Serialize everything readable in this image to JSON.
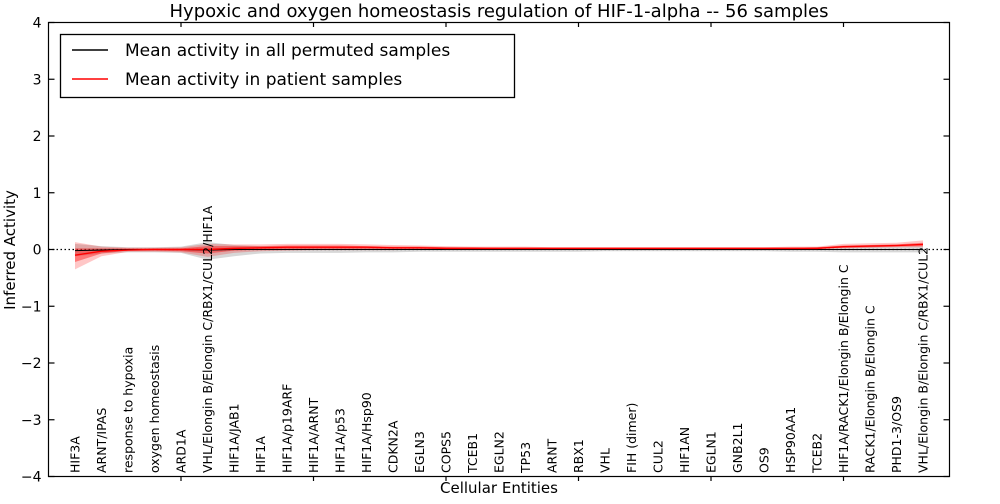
{
  "chart_data": {
    "type": "line",
    "title": "Hypoxic and oxygen homeostasis regulation of HIF-1-alpha -- 56 samples",
    "xlabel": "Cellular Entities",
    "ylabel": "Inferred Activity",
    "ylim": [
      -4,
      4
    ],
    "yticks": [
      4,
      3,
      2,
      1,
      0,
      -1,
      -2,
      -3,
      -4
    ],
    "x_major_tick_every": 5,
    "grid": false,
    "legend_position": "upper left",
    "zero_line": {
      "style": "dotted",
      "color": "#000000",
      "y": 0
    },
    "categories": [
      "HIF3A",
      "ARNT/IPAS",
      "response to hypoxia",
      "oxygen homeostasis",
      "ARD1A",
      "VHL/Elongin B/Elongin C/RBX1/CUL2/HIF1A",
      "HIF1A/JAB1",
      "HIF1A",
      "HIF1A/p19ARF",
      "HIF1A/ARNT",
      "HIF1A/p53",
      "HIF1A/Hsp90",
      "CDKN2A",
      "EGLN3",
      "COPS5",
      "TCEB1",
      "EGLN2",
      "TP53",
      "ARNT",
      "RBX1",
      "VHL",
      "FIH (dimer)",
      "CUL2",
      "HIF1AN",
      "EGLN1",
      "GNB2L1",
      "OS9",
      "HSP90AA1",
      "TCEB2",
      "HIF1A/RACK1/Elongin B/Elongin C",
      "RACK1/Elongin B/Elongin C",
      "PHD1-3/OS9",
      "VHL/Elongin B/Elongin C/RBX1/CUL2"
    ],
    "series": [
      {
        "name": "Mean activity in all permuted samples",
        "color": "#000000",
        "values": [
          -0.02,
          -0.01,
          0,
          0,
          0,
          -0.01,
          0,
          0,
          0,
          0,
          0,
          0,
          0,
          0,
          0,
          0,
          0,
          0,
          0,
          0,
          0,
          0,
          0,
          0,
          0,
          0,
          0,
          0,
          0,
          0,
          0,
          0,
          0
        ]
      },
      {
        "name": "Mean activity in patient samples",
        "color": "#ff0000",
        "values": [
          -0.1,
          -0.03,
          -0.01,
          0,
          0,
          0,
          0.02,
          0.03,
          0.04,
          0.04,
          0.04,
          0.04,
          0.03,
          0.03,
          0.02,
          0.02,
          0.02,
          0.02,
          0.02,
          0.02,
          0.02,
          0.02,
          0.02,
          0.02,
          0.02,
          0.02,
          0.02,
          0.02,
          0.02,
          0.05,
          0.06,
          0.07,
          0.09
        ]
      }
    ],
    "bands": [
      {
        "name": "permuted-samples-spread",
        "color": "#8c8c8c",
        "opacity": 0.35,
        "upper": [
          0.1,
          0.06,
          0.04,
          0.04,
          0.05,
          0.13,
          0.08,
          0.06,
          0.05,
          0.05,
          0.05,
          0.05,
          0.04,
          0.04,
          0.04,
          0.03,
          0.03,
          0.03,
          0.03,
          0.03,
          0.03,
          0.03,
          0.03,
          0.03,
          0.03,
          0.03,
          0.03,
          0.03,
          0.04,
          0.05,
          0.05,
          0.05,
          0.06
        ],
        "lower": [
          -0.12,
          -0.07,
          -0.05,
          -0.05,
          -0.06,
          -0.18,
          -0.12,
          -0.07,
          -0.06,
          -0.06,
          -0.06,
          -0.05,
          -0.05,
          -0.04,
          -0.04,
          -0.04,
          -0.04,
          -0.04,
          -0.04,
          -0.04,
          -0.03,
          -0.03,
          -0.03,
          -0.03,
          -0.03,
          -0.03,
          -0.03,
          -0.04,
          -0.04,
          -0.05,
          -0.05,
          -0.05,
          -0.05
        ]
      },
      {
        "name": "patient-samples-spread-outer",
        "color": "#ff0000",
        "opacity": 0.22,
        "upper": [
          0.13,
          0.05,
          0.03,
          0.03,
          0.04,
          0.1,
          0.09,
          0.09,
          0.1,
          0.1,
          0.1,
          0.09,
          0.08,
          0.07,
          0.06,
          0.05,
          0.05,
          0.05,
          0.04,
          0.04,
          0.04,
          0.04,
          0.04,
          0.04,
          0.04,
          0.04,
          0.04,
          0.05,
          0.05,
          0.1,
          0.11,
          0.12,
          0.16
        ],
        "lower": [
          -0.35,
          -0.12,
          -0.04,
          -0.04,
          -0.05,
          -0.13,
          -0.06,
          -0.03,
          -0.02,
          -0.01,
          -0.01,
          -0.01,
          -0.01,
          0,
          0,
          0,
          0,
          0,
          0,
          0,
          0,
          0,
          0,
          0,
          0,
          0,
          0,
          0,
          0.01,
          0.02,
          0.03,
          0.04,
          0.04
        ]
      },
      {
        "name": "patient-samples-spread-inner",
        "color": "#ff0000",
        "opacity": 0.4,
        "upper": [
          0.02,
          0.02,
          0.02,
          0.02,
          0.02,
          0.06,
          0.06,
          0.06,
          0.07,
          0.07,
          0.07,
          0.06,
          0.05,
          0.05,
          0.04,
          0.04,
          0.03,
          0.03,
          0.03,
          0.03,
          0.03,
          0.03,
          0.03,
          0.03,
          0.03,
          0.03,
          0.03,
          0.03,
          0.04,
          0.07,
          0.08,
          0.09,
          0.12
        ],
        "lower": [
          -0.22,
          -0.07,
          -0.02,
          -0.02,
          -0.03,
          -0.07,
          -0.02,
          0,
          0,
          0.01,
          0.01,
          0.01,
          0.01,
          0.01,
          0.01,
          0.01,
          0.01,
          0.01,
          0.01,
          0.01,
          0.01,
          0.01,
          0.01,
          0.01,
          0.01,
          0.01,
          0.01,
          0.01,
          0.01,
          0.03,
          0.04,
          0.05,
          0.06
        ]
      }
    ]
  },
  "legend": {
    "items": [
      {
        "label": "Mean activity in all permuted samples",
        "color": "#000000"
      },
      {
        "label": "Mean activity in patient samples",
        "color": "#ff0000"
      }
    ]
  }
}
